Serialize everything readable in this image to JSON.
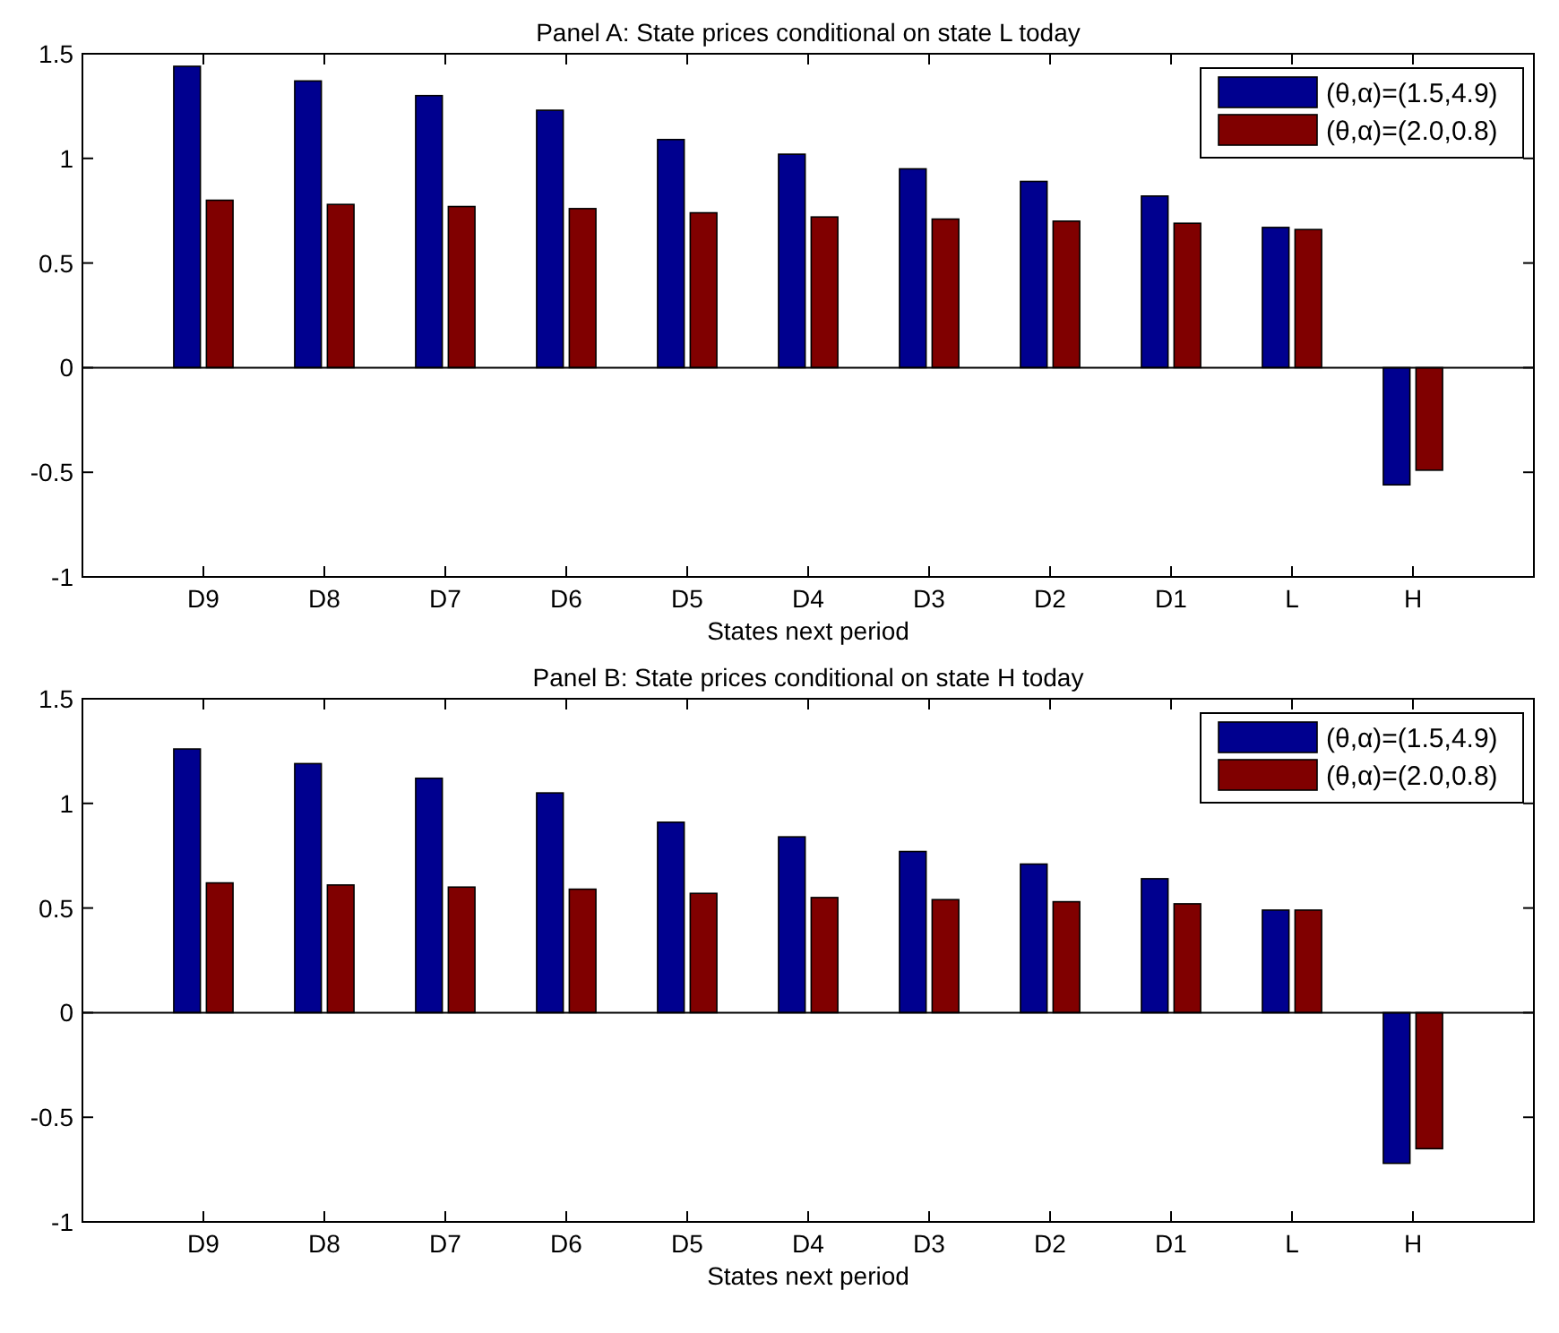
{
  "chart_data": [
    {
      "type": "bar",
      "title": "Panel A: State prices conditional on state L today",
      "xlabel": "States next period",
      "categories": [
        "D9",
        "D8",
        "D7",
        "D6",
        "D5",
        "D4",
        "D3",
        "D2",
        "D1",
        "L",
        "H"
      ],
      "ylim": [
        -1,
        1.5
      ],
      "yticks": [
        -1,
        -0.5,
        0,
        0.5,
        1,
        1.5
      ],
      "legend": "top right",
      "series": [
        {
          "name": "(θ,α)=(1.5,4.9)",
          "color": "#00008f",
          "values": [
            1.44,
            1.37,
            1.3,
            1.23,
            1.09,
            1.02,
            0.95,
            0.89,
            0.82,
            0.67,
            -0.56
          ]
        },
        {
          "name": "(θ,α)=(2.0,0.8)",
          "color": "#800000",
          "values": [
            0.8,
            0.78,
            0.77,
            0.76,
            0.74,
            0.72,
            0.71,
            0.7,
            0.69,
            0.66,
            -0.49
          ]
        }
      ]
    },
    {
      "type": "bar",
      "title": "Panel B: State prices conditional on state H today",
      "xlabel": "States next period",
      "categories": [
        "D9",
        "D8",
        "D7",
        "D6",
        "D5",
        "D4",
        "D3",
        "D2",
        "D1",
        "L",
        "H"
      ],
      "ylim": [
        -1,
        1.5
      ],
      "yticks": [
        -1,
        -0.5,
        0,
        0.5,
        1,
        1.5
      ],
      "legend": "top right",
      "series": [
        {
          "name": "(θ,α)=(1.5,4.9)",
          "color": "#00008f",
          "values": [
            1.26,
            1.19,
            1.12,
            1.05,
            0.91,
            0.84,
            0.77,
            0.71,
            0.64,
            0.49,
            -0.72
          ]
        },
        {
          "name": "(θ,α)=(2.0,0.8)",
          "color": "#800000",
          "values": [
            0.62,
            0.61,
            0.6,
            0.59,
            0.57,
            0.55,
            0.54,
            0.53,
            0.52,
            0.49,
            -0.65
          ]
        }
      ]
    }
  ]
}
